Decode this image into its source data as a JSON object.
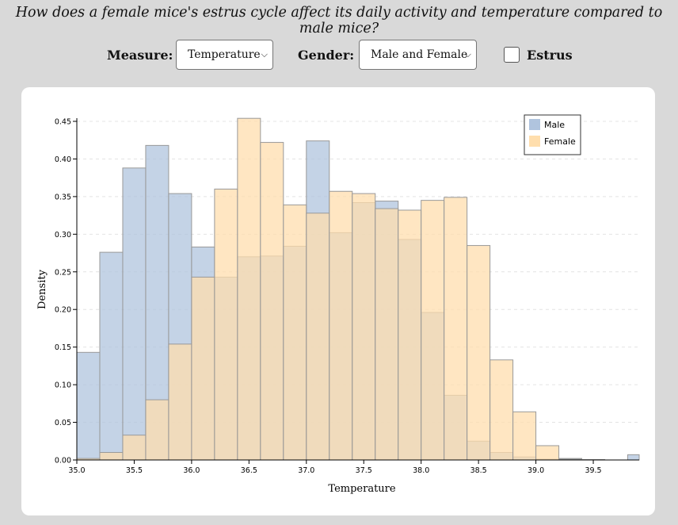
{
  "header": {
    "title": "How does a female mice's estrus cycle affect its daily activity and temperature compared to male mice?"
  },
  "controls": {
    "measure_label": "Measure:",
    "measure_value": "Temperature",
    "gender_label": "Gender:",
    "gender_value": "Male and Female",
    "estrus_label": "Estrus",
    "estrus_checked": false
  },
  "colors": {
    "male": "#b0c4de",
    "female": "#ffdead",
    "overlap": "#d6c3a6",
    "background": "#d9d9d9"
  },
  "chart_data": {
    "type": "bar",
    "subtype": "overlaid-histogram",
    "xlabel": "Temperature",
    "ylabel": "Density",
    "xlim": [
      35.0,
      39.9
    ],
    "ylim": [
      0,
      0.45
    ],
    "xticks": [
      "35.0",
      "35.5",
      "36.0",
      "36.5",
      "37.0",
      "37.5",
      "38.0",
      "38.5",
      "39.0",
      "39.5"
    ],
    "yticks": [
      "0.00",
      "0.05",
      "0.10",
      "0.15",
      "0.20",
      "0.25",
      "0.30",
      "0.35",
      "0.40",
      "0.45"
    ],
    "bin_edges": [
      35.0,
      35.2,
      35.4,
      35.6,
      35.8,
      36.0,
      36.2,
      36.4,
      36.6,
      36.8,
      37.0,
      37.2,
      37.4,
      37.6,
      37.8,
      38.0,
      38.2,
      38.4,
      38.6,
      38.8,
      39.0,
      39.2,
      39.4,
      39.6,
      39.8,
      39.9
    ],
    "grid": "horizontal-dashed",
    "legend_position": "top-right",
    "series": [
      {
        "name": "Male",
        "values": [
          0.143,
          0.276,
          0.388,
          0.418,
          0.354,
          0.283,
          0.243,
          0.27,
          0.271,
          0.284,
          0.424,
          0.302,
          0.342,
          0.344,
          0.293,
          0.196,
          0.086,
          0.025,
          0.01,
          0.004,
          0.001,
          0.002,
          0.0005,
          0.0,
          0.007
        ]
      },
      {
        "name": "Female",
        "values": [
          0.002,
          0.01,
          0.033,
          0.08,
          0.154,
          0.243,
          0.36,
          0.454,
          0.422,
          0.339,
          0.328,
          0.357,
          0.354,
          0.334,
          0.332,
          0.345,
          0.349,
          0.285,
          0.133,
          0.064,
          0.019,
          0.001,
          0.0,
          0.0,
          0.0
        ]
      }
    ]
  }
}
